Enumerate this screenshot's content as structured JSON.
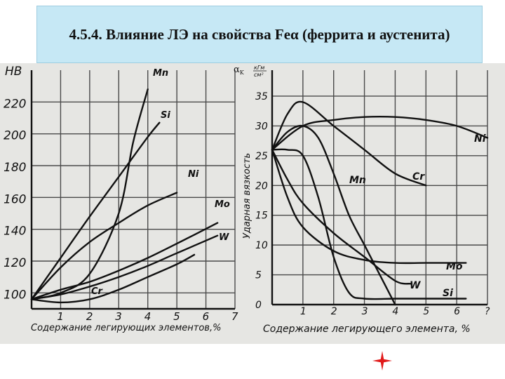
{
  "title": "4.5.4. Влияние ЛЭ на свойства Feα (феррита и аустенита)",
  "chart_data": [
    {
      "type": "line",
      "ylabel": "HB",
      "xlabel": "Содержание легирующих элементов,%",
      "xlim": [
        0,
        7
      ],
      "ylim": [
        90,
        240
      ],
      "xticks": [
        1,
        2,
        3,
        4,
        5,
        6,
        7
      ],
      "yticks": [
        100,
        120,
        140,
        160,
        180,
        200,
        220
      ],
      "grid": true,
      "series": [
        {
          "name": "Mn",
          "label": "Mn",
          "x": [
            0,
            1,
            2,
            3,
            3.5,
            4.0
          ],
          "y": [
            96,
            100,
            112,
            150,
            195,
            228
          ]
        },
        {
          "name": "Si",
          "label": "Si",
          "x": [
            0,
            1,
            2,
            3,
            4,
            4.4
          ],
          "y": [
            96,
            122,
            148,
            173,
            198,
            207
          ]
        },
        {
          "name": "Ni",
          "label": "Ni",
          "x": [
            0,
            1,
            2,
            3,
            4,
            5
          ],
          "y": [
            96,
            116,
            132,
            144,
            155,
            163
          ]
        },
        {
          "name": "Mo",
          "label": "Mo",
          "x": [
            0,
            1,
            2,
            3,
            4,
            5,
            6.4
          ],
          "y": [
            96,
            102,
            107,
            114,
            122,
            131,
            144
          ]
        },
        {
          "name": "W",
          "label": "W",
          "x": [
            0,
            1,
            2,
            3,
            4,
            5,
            6.4
          ],
          "y": [
            96,
            99,
            104,
            110,
            117,
            125,
            136
          ]
        },
        {
          "name": "Cr",
          "label": "Cr",
          "x": [
            0,
            1,
            2,
            3,
            4,
            5,
            5.6
          ],
          "y": [
            96,
            94,
            96,
            102,
            110,
            118,
            124
          ]
        }
      ]
    },
    {
      "type": "line",
      "ylabel": "Ударная вязкость",
      "yunit_symbol": "αK",
      "yunit_top": "кГм",
      "yunit_bottom": "см²",
      "xlabel": "Содержание легирующего элемента, %",
      "xlim": [
        0,
        7
      ],
      "ylim": [
        0,
        37
      ],
      "xticks": [
        "1",
        "2",
        "3",
        "4",
        "5",
        "6",
        "?"
      ],
      "yticks": [
        0,
        5,
        10,
        15,
        20,
        25,
        30,
        35
      ],
      "grid": true,
      "series": [
        {
          "name": "Ni",
          "label": "Ni",
          "x": [
            0,
            1,
            2,
            3,
            4,
            5,
            6,
            7
          ],
          "y": [
            26,
            30,
            31,
            31.5,
            31.5,
            31,
            30,
            28
          ]
        },
        {
          "name": "Cr",
          "label": "Cr",
          "x": [
            0,
            0.5,
            1,
            2,
            3,
            4,
            5
          ],
          "y": [
            26,
            32,
            34,
            30,
            26,
            22,
            20
          ]
        },
        {
          "name": "Mn",
          "label": "Mn",
          "x": [
            0,
            0.5,
            1,
            1.5,
            2,
            2.5,
            3,
            3.5,
            4
          ],
          "y": [
            26,
            29,
            30,
            28,
            22,
            15,
            10,
            5,
            0
          ]
        },
        {
          "name": "Mo",
          "label": "Mo",
          "x": [
            0,
            0.5,
            1,
            2,
            3,
            4,
            5,
            6.3
          ],
          "y": [
            26,
            18,
            13,
            9,
            7.5,
            7,
            7,
            7
          ]
        },
        {
          "name": "W",
          "label": "W",
          "x": [
            0,
            0.5,
            1,
            2,
            3,
            4,
            4.5
          ],
          "y": [
            26,
            21,
            17,
            12,
            8,
            4,
            3.5
          ]
        },
        {
          "name": "Si",
          "label": "Si",
          "x": [
            0,
            0.5,
            1,
            1.5,
            2,
            2.5,
            3,
            4,
            5,
            6.3
          ],
          "y": [
            26,
            26,
            25,
            18,
            8,
            2,
            1,
            1,
            1,
            1
          ]
        }
      ]
    }
  ],
  "colors": {
    "title_background": "#c6e8f5",
    "plot_background": "#e6e6e3",
    "ink": "#111111",
    "star": "#e11a1a"
  },
  "icons": {
    "decoration": "four-point-star-icon"
  }
}
